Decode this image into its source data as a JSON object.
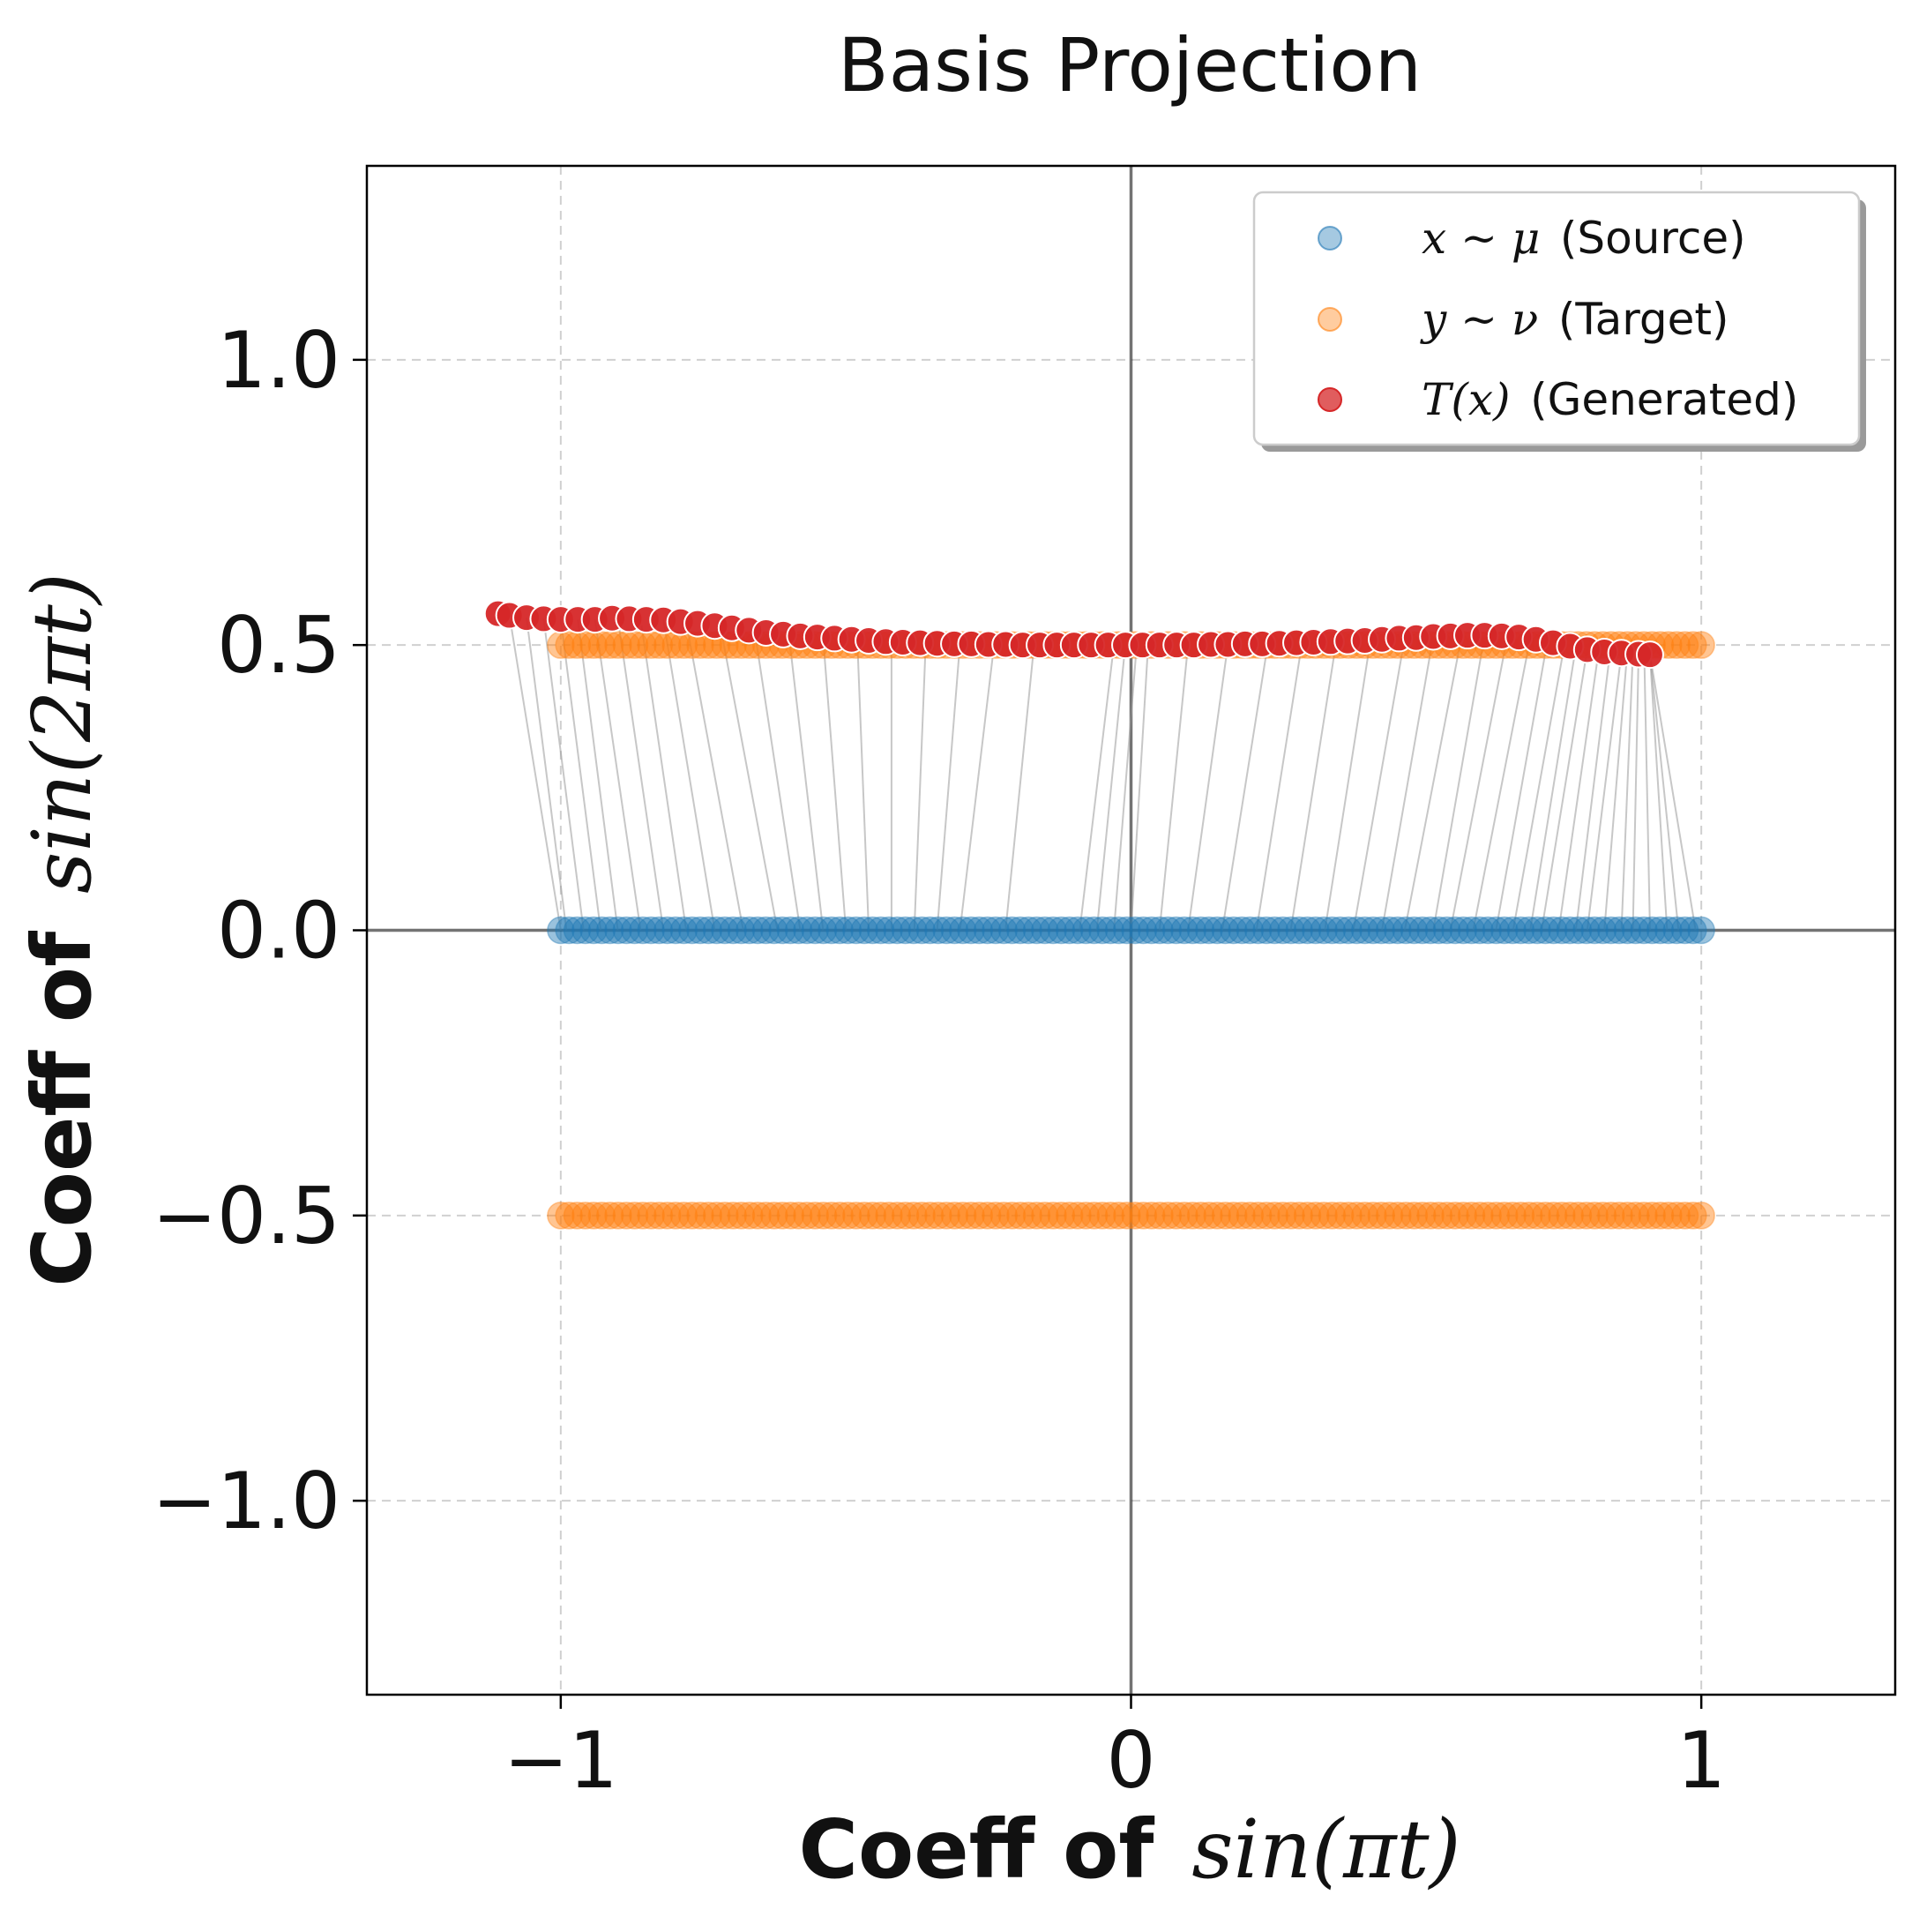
{
  "chart_data": {
    "type": "scatter",
    "title": "Basis Projection",
    "xlabel_bold": "Coeff of",
    "xlabel_math": "sin(πt)",
    "ylabel_bold": "Coeff of",
    "ylabel_math": "sin(2πt)",
    "xlim": [
      -1.34,
      1.34
    ],
    "ylim": [
      -1.34,
      1.34
    ],
    "xticks": [
      {
        "value": -1,
        "label": "−1"
      },
      {
        "value": 0,
        "label": "0"
      },
      {
        "value": 1,
        "label": "1"
      }
    ],
    "yticks": [
      {
        "value": 1.0,
        "label": "1.0"
      },
      {
        "value": 0.5,
        "label": "0.5"
      },
      {
        "value": 0.0,
        "label": "0.0"
      },
      {
        "value": -0.5,
        "label": "−0.5"
      },
      {
        "value": -1.0,
        "label": "−1.0"
      }
    ],
    "grid": true,
    "legend_position": "top-right",
    "series": [
      {
        "name": "x ~ μ (Source)",
        "math": "x ~ μ",
        "text": "(Source)",
        "color": "#1f77b4",
        "x_range": [
          -1,
          1
        ],
        "y_values": [
          0.0
        ]
      },
      {
        "name": "y ~ ν (Target)",
        "math": "y ~ ν",
        "text": "(Target)",
        "color": "#ff7f0e",
        "x_range": [
          -1,
          1
        ],
        "y_values": [
          0.5,
          -0.5
        ]
      },
      {
        "name": "T(x) (Generated)",
        "math": "T(x)",
        "text": "(Generated)",
        "color": "#d62728",
        "points": [
          [
            -1.11,
            0.555
          ],
          [
            -1.09,
            0.552
          ],
          [
            -1.06,
            0.548
          ],
          [
            -1.03,
            0.546
          ],
          [
            -1.0,
            0.545
          ],
          [
            -0.97,
            0.545
          ],
          [
            -0.94,
            0.545
          ],
          [
            -0.91,
            0.547
          ],
          [
            -0.88,
            0.546
          ],
          [
            -0.85,
            0.545
          ],
          [
            -0.82,
            0.544
          ],
          [
            -0.79,
            0.541
          ],
          [
            -0.76,
            0.538
          ],
          [
            -0.73,
            0.534
          ],
          [
            -0.7,
            0.53
          ],
          [
            -0.67,
            0.526
          ],
          [
            -0.64,
            0.522
          ],
          [
            -0.61,
            0.519
          ],
          [
            -0.58,
            0.516
          ],
          [
            -0.55,
            0.514
          ],
          [
            -0.52,
            0.512
          ],
          [
            -0.49,
            0.51
          ],
          [
            -0.46,
            0.508
          ],
          [
            -0.43,
            0.506
          ],
          [
            -0.4,
            0.505
          ],
          [
            -0.37,
            0.504
          ],
          [
            -0.34,
            0.503
          ],
          [
            -0.31,
            0.502
          ],
          [
            -0.28,
            0.502
          ],
          [
            -0.25,
            0.501
          ],
          [
            -0.22,
            0.501
          ],
          [
            -0.19,
            0.5
          ],
          [
            -0.16,
            0.5
          ],
          [
            -0.13,
            0.5
          ],
          [
            -0.1,
            0.5
          ],
          [
            -0.07,
            0.5
          ],
          [
            -0.04,
            0.5
          ],
          [
            -0.01,
            0.5
          ],
          [
            0.02,
            0.5
          ],
          [
            0.05,
            0.5
          ],
          [
            0.08,
            0.5
          ],
          [
            0.11,
            0.5
          ],
          [
            0.14,
            0.501
          ],
          [
            0.17,
            0.501
          ],
          [
            0.2,
            0.502
          ],
          [
            0.23,
            0.502
          ],
          [
            0.26,
            0.503
          ],
          [
            0.29,
            0.504
          ],
          [
            0.32,
            0.505
          ],
          [
            0.35,
            0.506
          ],
          [
            0.38,
            0.507
          ],
          [
            0.41,
            0.508
          ],
          [
            0.44,
            0.51
          ],
          [
            0.47,
            0.512
          ],
          [
            0.5,
            0.513
          ],
          [
            0.53,
            0.515
          ],
          [
            0.56,
            0.516
          ],
          [
            0.59,
            0.517
          ],
          [
            0.62,
            0.517
          ],
          [
            0.65,
            0.516
          ],
          [
            0.68,
            0.514
          ],
          [
            0.71,
            0.51
          ],
          [
            0.74,
            0.504
          ],
          [
            0.77,
            0.498
          ],
          [
            0.8,
            0.492
          ],
          [
            0.83,
            0.488
          ],
          [
            0.86,
            0.486
          ],
          [
            0.89,
            0.484
          ],
          [
            0.91,
            0.483
          ]
        ]
      }
    ],
    "connection_lines": {
      "color": "#999999",
      "from_series": "x ~ μ (Source)",
      "to_series": "T(x) (Generated)",
      "pairs": [
        [
          -1.0,
          -1.09
        ],
        [
          -0.99,
          -1.06
        ],
        [
          -0.96,
          -1.03
        ],
        [
          -0.93,
          -1.0
        ],
        [
          -0.9,
          -0.97
        ],
        [
          -0.86,
          -0.94
        ],
        [
          -0.82,
          -0.9
        ],
        [
          -0.78,
          -0.86
        ],
        [
          -0.73,
          -0.82
        ],
        [
          -0.68,
          -0.78
        ],
        [
          -0.62,
          -0.72
        ],
        [
          -0.58,
          -0.66
        ],
        [
          -0.54,
          -0.6
        ],
        [
          -0.5,
          -0.54
        ],
        [
          -0.46,
          -0.48
        ],
        [
          -0.42,
          -0.42
        ],
        [
          -0.38,
          -0.36
        ],
        [
          -0.34,
          -0.3
        ],
        [
          -0.3,
          -0.24
        ],
        [
          -0.22,
          -0.17
        ],
        [
          -0.09,
          -0.03
        ],
        [
          -0.06,
          -0.01
        ],
        [
          -0.03,
          0.01
        ],
        [
          0.0,
          0.03
        ],
        [
          0.05,
          0.1
        ],
        [
          0.1,
          0.17
        ],
        [
          0.16,
          0.24
        ],
        [
          0.22,
          0.3
        ],
        [
          0.28,
          0.36
        ],
        [
          0.34,
          0.42
        ],
        [
          0.39,
          0.48
        ],
        [
          0.44,
          0.53
        ],
        [
          0.48,
          0.58
        ],
        [
          0.53,
          0.62
        ],
        [
          0.56,
          0.66
        ],
        [
          0.6,
          0.7
        ],
        [
          0.64,
          0.73
        ],
        [
          0.67,
          0.76
        ],
        [
          0.7,
          0.78
        ],
        [
          0.72,
          0.8
        ],
        [
          0.75,
          0.82
        ],
        [
          0.78,
          0.84
        ],
        [
          0.8,
          0.86
        ],
        [
          0.83,
          0.87
        ],
        [
          0.86,
          0.88
        ],
        [
          0.88,
          0.89
        ],
        [
          0.91,
          0.9
        ],
        [
          0.94,
          0.91
        ],
        [
          0.96,
          0.91
        ],
        [
          0.99,
          0.91
        ]
      ]
    }
  }
}
